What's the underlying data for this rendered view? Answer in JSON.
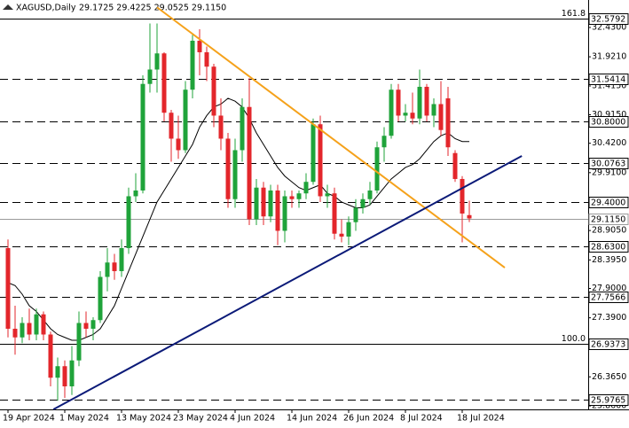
{
  "chart_data": {
    "type": "candlestick",
    "symbol": "XAGUSD,Daily",
    "quote": "29.1725 29.4225 29.0525 29.1150",
    "categories": [
      "19 Apr 2024",
      null,
      null,
      null,
      null,
      null,
      null,
      null,
      "1 May 2024",
      null,
      null,
      null,
      null,
      null,
      null,
      null,
      "13 May 2024",
      null,
      null,
      null,
      null,
      null,
      null,
      null,
      "23 May 2024",
      null,
      null,
      null,
      null,
      null,
      null,
      null,
      "4 Jun 2024",
      null,
      null,
      null,
      null,
      null,
      null,
      null,
      "14 Jun 2024",
      null,
      null,
      null,
      null,
      null,
      null,
      null,
      "26 Jun 2024",
      null,
      null,
      null,
      null,
      null,
      null,
      null,
      "8 Jul 2024",
      null,
      null,
      null,
      null,
      null,
      null,
      null,
      "18 Jul 2024",
      null
    ],
    "open": [
      28.6,
      27.2,
      27.05,
      27.3,
      27.1,
      27.45,
      27.1,
      26.35,
      26.55,
      26.2,
      26.65,
      27.3,
      27.2,
      27.35,
      28.1,
      28.35,
      28.2,
      28.6,
      29.5,
      29.6,
      31.45,
      31.7,
      31.98,
      30.95,
      30.5,
      30.3,
      31.35,
      32.2,
      32.0,
      31.75,
      30.9,
      30.5,
      29.45,
      30.3,
      31.05,
      29.1,
      29.65,
      29.15,
      29.6,
      28.9,
      29.5,
      29.45,
      29.55,
      29.75,
      30.75,
      29.5,
      29.55,
      28.85,
      28.8,
      29.05,
      29.3,
      29.45,
      29.6,
      30.35,
      30.55,
      31.35,
      30.9,
      30.95,
      30.85,
      31.4,
      30.9,
      31.1,
      31.2,
      30.25,
      29.8,
      29.1725
    ],
    "high": [
      28.75,
      27.6,
      27.4,
      27.55,
      27.55,
      27.5,
      27.15,
      26.7,
      26.65,
      26.9,
      27.5,
      27.5,
      27.4,
      28.2,
      28.6,
      28.5,
      28.75,
      29.65,
      29.9,
      31.6,
      32.5,
      32.5,
      32.0,
      31.0,
      30.9,
      31.5,
      32.3,
      32.4,
      32.1,
      31.8,
      31.2,
      30.6,
      30.5,
      31.2,
      31.55,
      29.8,
      29.75,
      29.7,
      29.7,
      29.6,
      29.6,
      29.6,
      29.9,
      30.85,
      30.9,
      29.7,
      29.65,
      29.1,
      29.15,
      29.45,
      29.55,
      29.75,
      30.45,
      30.7,
      31.45,
      31.45,
      31.1,
      31.3,
      31.7,
      31.45,
      31.2,
      31.5,
      31.4,
      30.3,
      29.85,
      29.4225
    ],
    "low": [
      27.05,
      26.75,
      26.95,
      27.0,
      27.0,
      27.0,
      26.2,
      25.95,
      26.0,
      26.05,
      26.55,
      27.05,
      27.0,
      27.3,
      27.85,
      28.05,
      28.1,
      28.5,
      29.4,
      29.55,
      31.3,
      31.3,
      30.8,
      30.1,
      30.15,
      30.25,
      31.2,
      31.6,
      31.5,
      30.7,
      30.3,
      29.3,
      29.3,
      30.1,
      29.0,
      29.0,
      29.0,
      29.05,
      28.65,
      28.7,
      29.3,
      29.3,
      29.45,
      29.7,
      29.4,
      29.3,
      28.75,
      28.7,
      28.65,
      28.9,
      29.2,
      29.35,
      29.55,
      30.1,
      30.5,
      30.8,
      30.8,
      30.75,
      30.75,
      30.8,
      30.7,
      30.55,
      30.2,
      29.75,
      28.7,
      29.0525
    ],
    "close": [
      27.2,
      27.05,
      27.3,
      27.1,
      27.45,
      27.1,
      26.35,
      26.55,
      26.2,
      26.65,
      27.3,
      27.2,
      27.35,
      28.1,
      28.35,
      28.2,
      28.6,
      29.5,
      29.6,
      31.45,
      31.7,
      31.98,
      30.95,
      30.5,
      30.3,
      31.35,
      32.2,
      32.0,
      31.75,
      30.9,
      30.5,
      29.45,
      30.3,
      31.05,
      29.1,
      29.65,
      29.15,
      29.6,
      28.9,
      29.5,
      29.45,
      29.55,
      29.75,
      30.75,
      29.5,
      29.55,
      28.85,
      28.8,
      29.05,
      29.3,
      29.45,
      29.6,
      30.35,
      30.55,
      31.35,
      30.9,
      30.95,
      30.85,
      31.4,
      30.9,
      31.1,
      30.65,
      30.35,
      29.8,
      29.2,
      29.115
    ],
    "up_color": "#1fa33a",
    "down_color": "#e3262b",
    "ma": {
      "color": "#000000",
      "values": [
        28.0,
        27.95,
        27.8,
        27.6,
        27.5,
        27.35,
        27.2,
        27.1,
        27.05,
        27.0,
        27.0,
        27.05,
        27.1,
        27.2,
        27.4,
        27.6,
        27.9,
        28.2,
        28.5,
        28.8,
        29.1,
        29.4,
        29.6,
        29.8,
        30.0,
        30.2,
        30.4,
        30.7,
        30.9,
        31.05,
        31.1,
        31.2,
        31.15,
        31.05,
        30.85,
        30.6,
        30.4,
        30.2,
        30.0,
        29.85,
        29.75,
        29.65,
        29.6,
        29.65,
        29.7,
        29.55,
        29.5,
        29.4,
        29.35,
        29.3,
        29.3,
        29.35,
        29.5,
        29.65,
        29.8,
        29.9,
        30.0,
        30.05,
        30.15,
        30.3,
        30.45,
        30.55,
        30.6,
        30.5,
        30.45,
        30.45
      ]
    },
    "trendlines": [
      {
        "color": "#f5a21b",
        "x": [
          21,
          70
        ],
        "y": [
          32.78,
          28.26
        ]
      },
      {
        "color": "#0b1a78",
        "x": [
          6.4,
          72.4
        ],
        "y": [
          25.8,
          30.2
        ]
      }
    ],
    "ylim": [
      25.8,
      32.907
    ],
    "yticks": [
      {
        "value": 32.43,
        "label": "32.4300"
      },
      {
        "value": 31.921,
        "label": "31.9210"
      },
      {
        "value": 31.415,
        "label": "31.4150"
      },
      {
        "value": 30.915,
        "label": "30.9150"
      },
      {
        "value": 30.42,
        "label": "30.4200"
      },
      {
        "value": 29.91,
        "label": "29.9100"
      },
      {
        "value": 28.905,
        "label": "28.9050"
      },
      {
        "value": 28.395,
        "label": "28.3950"
      },
      {
        "value": 27.9,
        "label": "27.9000"
      },
      {
        "value": 27.39,
        "label": "27.3900"
      },
      {
        "value": 26.365,
        "label": "26.3650"
      },
      {
        "value": 25.86,
        "label": "25.8600"
      }
    ],
    "levels": [
      {
        "value": 32.5792,
        "label": "32.5792",
        "fib": "161.8",
        "style": "solid"
      },
      {
        "value": 31.5414,
        "label": "31.5414",
        "style": "dashed"
      },
      {
        "value": 30.8,
        "label": "30.8000",
        "style": "dashed"
      },
      {
        "value": 30.0763,
        "label": "30.0763",
        "style": "dashed"
      },
      {
        "value": 29.4,
        "label": "29.4000",
        "style": "dashed"
      },
      {
        "value": 29.115,
        "label": "29.1150",
        "style": "current"
      },
      {
        "value": 28.63,
        "label": "28.6300",
        "style": "dashed"
      },
      {
        "value": 27.7566,
        "label": "27.7566",
        "style": "dashed"
      },
      {
        "value": 26.9373,
        "label": "26.9373",
        "fib": "100.0",
        "style": "solid"
      },
      {
        "value": 25.9765,
        "label": "25.9765",
        "style": "dashed"
      }
    ]
  }
}
